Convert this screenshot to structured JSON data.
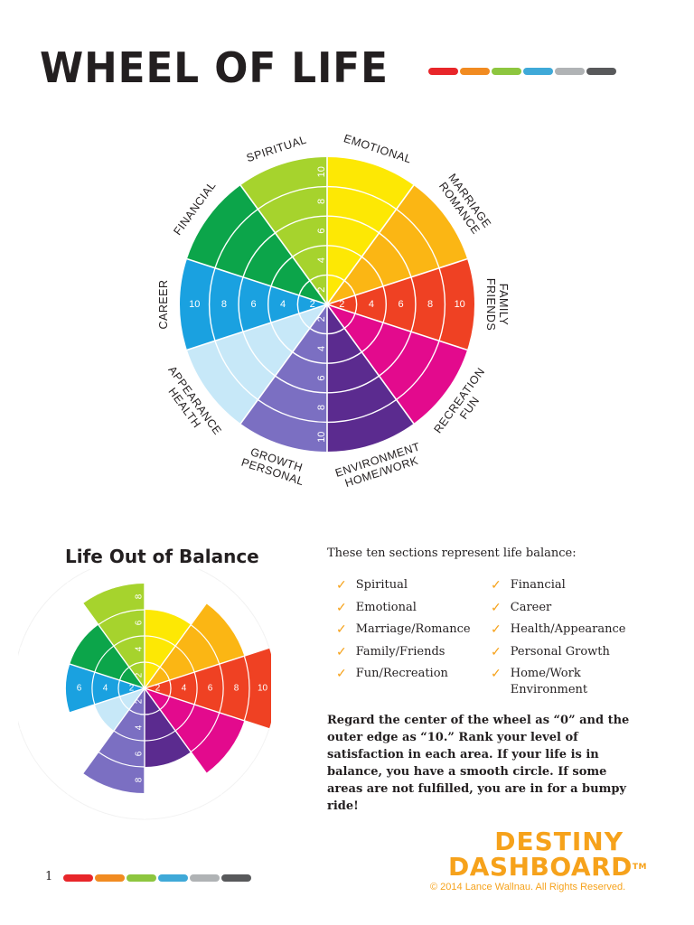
{
  "title": "WHEEL OF LIFE",
  "rule_colors": [
    "#e8262a",
    "#f18b21",
    "#8dc63f",
    "#3fa9d8",
    "#b0b3b5",
    "#58595b"
  ],
  "wheel": {
    "scale_labels": [
      "2",
      "4",
      "6",
      "8",
      "10"
    ],
    "categories": [
      {
        "name": "Emotional",
        "label": [
          "EMOTIONAL"
        ],
        "color": "#fde804"
      },
      {
        "name": "Marriage/Romance",
        "label": [
          "MARRIAGE",
          "ROMANCE"
        ],
        "color": "#fbb614"
      },
      {
        "name": "Family/Friends",
        "label": [
          "FAMILY",
          "FRIENDS"
        ],
        "color": "#ef4123"
      },
      {
        "name": "Fun/Recreation",
        "label": [
          "FUN",
          "RECREATION"
        ],
        "color": "#e30a8d"
      },
      {
        "name": "Home/Work Environment",
        "label": [
          "HOME/WORK",
          "ENVIRONMENT"
        ],
        "color": "#5b2b8f"
      },
      {
        "name": "Personal Growth",
        "label": [
          "PERSONAL",
          "GROWTH"
        ],
        "color": "#7b6fc2"
      },
      {
        "name": "Health/Appearance",
        "label": [
          "HEALTH",
          "APPEARANCE"
        ],
        "color": "#c7e8f8"
      },
      {
        "name": "Career",
        "label": [
          "CAREER"
        ],
        "color": "#1aa1e0"
      },
      {
        "name": "Financial",
        "label": [
          "FINANCIAL"
        ],
        "color": "#0ca54a"
      },
      {
        "name": "Spiritual",
        "label": [
          "SPIRITUAL"
        ],
        "color": "#a6d32d"
      }
    ]
  },
  "balance": {
    "subtitle": "Life Out of Balance",
    "values": [
      6,
      8,
      10,
      8,
      6,
      8,
      4,
      6,
      6,
      8
    ]
  },
  "intro": "These ten sections represent life balance:",
  "list_left": [
    "Spiritual",
    "Emotional",
    "Marriage/Romance",
    "Family/Friends",
    "Fun/Recreation"
  ],
  "list_right": [
    "Financial",
    "Career",
    "Health/Appearance",
    "Personal Growth",
    "Home/Work",
    "Environment"
  ],
  "check_icon": "checkmark-icon",
  "paragraph": "Regard the center of the wheel as “0” and the outer edge as “10.” Rank your level of satisfaction in each area. If your life is in balance, you have a smooth circle. If some areas are not fulfilled, you are in for a bumpy ride!",
  "logo": {
    "line1": "DESTINY",
    "line2": "DASHBOARD",
    "tm": "TM"
  },
  "copyright": "© 2014 Lance Wallnau. All Rights Reserved.",
  "page_number": "1"
}
